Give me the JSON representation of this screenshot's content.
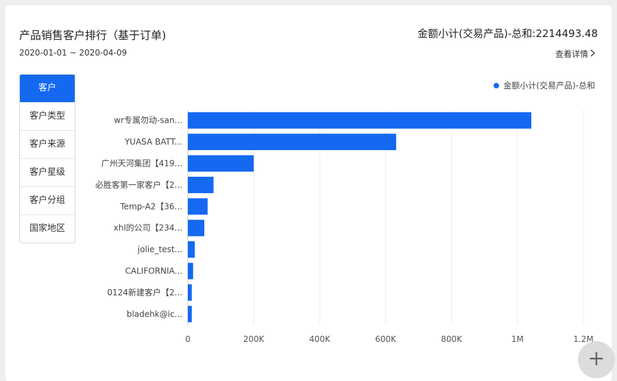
{
  "header": {
    "title": "产品销售客户排行（基于订单)",
    "date_range": "2020-01-01 ~ 2020-04-09",
    "total": "金额小计(交易产品)-总和:2214493.48",
    "detail_link": "查看详情"
  },
  "tabs": [
    {
      "label": "客户",
      "active": true
    },
    {
      "label": "客户类型",
      "active": false
    },
    {
      "label": "客户来源",
      "active": false
    },
    {
      "label": "客户星级",
      "active": false
    },
    {
      "label": "客户分组",
      "active": false
    },
    {
      "label": "国家地区",
      "active": false
    }
  ],
  "chart_data": {
    "type": "bar",
    "orientation": "horizontal",
    "categories": [
      "wr专属勿动-san...",
      "YUASA BATT...",
      "广州天河集团【419...",
      "必胜客第一家客户【2...",
      "Temp-A2【36...",
      "xhl的公司【234...",
      "jolie_test...",
      "CALIFORNIA...",
      "0124新建客户【2...",
      "bladehk@ic..."
    ],
    "series": [
      {
        "name": "金额小计(交易产品)-总和",
        "color": "#1569f0",
        "values": [
          1042000,
          632000,
          200000,
          78000,
          60000,
          50000,
          21000,
          16000,
          12000,
          12000
        ]
      }
    ],
    "xlim": [
      0,
      1200000
    ],
    "xticks": [
      0,
      200000,
      400000,
      600000,
      800000,
      1000000,
      1200000
    ],
    "xtick_labels": [
      "0",
      "200K",
      "400K",
      "600K",
      "800K",
      "1M",
      "1.2M"
    ],
    "grid": true,
    "legend": "top-right"
  },
  "fab": {
    "icon": "plus-icon",
    "label": "+"
  }
}
